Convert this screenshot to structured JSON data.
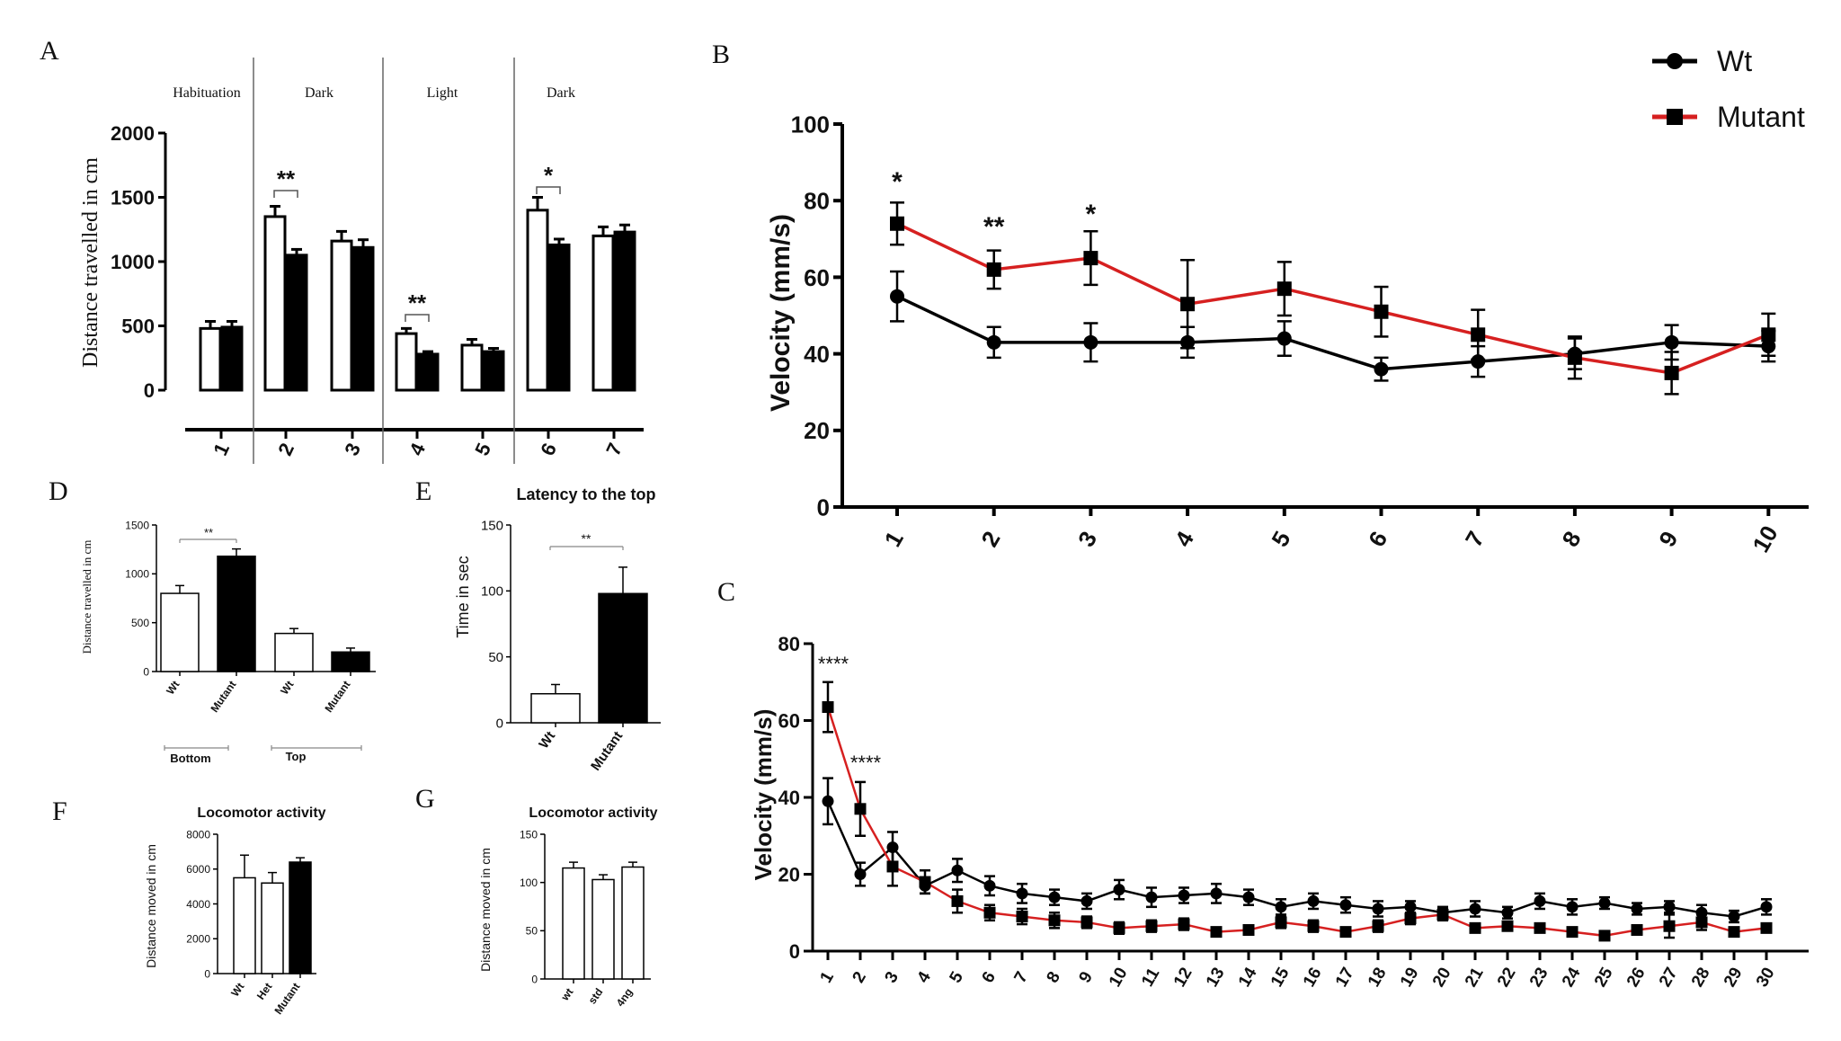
{
  "panel_letters": {
    "A": "A",
    "B": "B",
    "C": "C",
    "D": "D",
    "E": "E",
    "F": "F",
    "G": "G"
  },
  "chart_data": [
    {
      "id": "A",
      "type": "bar",
      "ylabel": "Distance travelled in cm",
      "ylim": [
        0,
        2000
      ],
      "yticks": [
        "0",
        "500",
        "1000",
        "1500",
        "2000"
      ],
      "categories": [
        "1",
        "2",
        "3",
        "4",
        "5",
        "6",
        "7"
      ],
      "sections": [
        "Habituation",
        "Dark",
        "Light",
        "Dark"
      ],
      "series": [
        {
          "fill": "#ffffff",
          "values": [
            480,
            1350,
            1160,
            440,
            350,
            1400,
            1200
          ],
          "errors": [
            55,
            80,
            75,
            40,
            45,
            100,
            70
          ]
        },
        {
          "fill": "#000000",
          "values": [
            490,
            1050,
            1110,
            280,
            300,
            1130,
            1230
          ],
          "errors": [
            45,
            45,
            60,
            20,
            25,
            45,
            55
          ]
        }
      ],
      "significance": [
        {
          "category": "2",
          "label": "**"
        },
        {
          "category": "4",
          "label": "**"
        },
        {
          "category": "6",
          "label": "*"
        }
      ]
    },
    {
      "id": "B",
      "type": "line",
      "ylabel": "Velocity (mm/s)",
      "ylim": [
        0,
        100
      ],
      "yticks": [
        "0",
        "20",
        "40",
        "60",
        "80",
        "100"
      ],
      "x": [
        "1",
        "2",
        "3",
        "4",
        "5",
        "6",
        "7",
        "8",
        "9",
        "10"
      ],
      "series": [
        {
          "name": "Wt",
          "color": "#000000",
          "marker": "circle",
          "values": [
            55,
            43,
            43,
            43,
            44,
            36,
            38,
            40,
            43,
            42
          ],
          "errors": [
            6.5,
            4,
            5,
            4,
            4.5,
            3,
            4,
            4,
            4.5,
            4
          ]
        },
        {
          "name": "Mutant",
          "color": "#d62020",
          "marker": "square",
          "values": [
            74,
            62,
            65,
            53,
            57,
            51,
            45,
            39,
            35,
            45
          ],
          "errors": [
            5.5,
            5,
            7,
            11.5,
            7,
            6.5,
            6.5,
            5.5,
            5.5,
            5.5
          ]
        }
      ],
      "significance": [
        {
          "x": "1",
          "label": "*"
        },
        {
          "x": "2",
          "label": "**"
        },
        {
          "x": "3",
          "label": "*"
        }
      ],
      "legend_position": "top-right"
    },
    {
      "id": "C",
      "type": "line",
      "ylabel": "Velocity (mm/s)",
      "ylim": [
        0,
        80
      ],
      "yticks": [
        "0",
        "20",
        "40",
        "60",
        "80"
      ],
      "x": [
        "1",
        "2",
        "3",
        "4",
        "5",
        "6",
        "7",
        "8",
        "9",
        "10",
        "11",
        "12",
        "13",
        "14",
        "15",
        "16",
        "17",
        "18",
        "19",
        "20",
        "21",
        "22",
        "23",
        "24",
        "25",
        "26",
        "27",
        "28",
        "29",
        "30"
      ],
      "series": [
        {
          "name": "Wt",
          "color": "#000000",
          "marker": "circle",
          "values": [
            39,
            20,
            27,
            17,
            21,
            17,
            15,
            14,
            13,
            16,
            14,
            14.5,
            15,
            14,
            11.5,
            13,
            12,
            11,
            11.5,
            10,
            11,
            10,
            13,
            11.5,
            12.5,
            11,
            11.5,
            10,
            9,
            11.5
          ],
          "errors": [
            6,
            3,
            4,
            2,
            3,
            2.5,
            2.5,
            2,
            2,
            2.5,
            2.5,
            2,
            2.5,
            2,
            2,
            2,
            2,
            2,
            1.5,
            1.5,
            2,
            1.5,
            2,
            2,
            1.5,
            1.5,
            1.5,
            2,
            1.5,
            2
          ]
        },
        {
          "name": "Mutant",
          "color": "#d62020",
          "marker": "square",
          "values": [
            63.5,
            37,
            22,
            18,
            13,
            10,
            9,
            8,
            7.5,
            6,
            6.5,
            7,
            5,
            5.5,
            7.5,
            6.5,
            5,
            6.5,
            8.5,
            9.5,
            6,
            6.5,
            6,
            5,
            4,
            5.5,
            6.5,
            7.5,
            5,
            6
          ]
        },
        {
          "errors": [
            6.5,
            7,
            5,
            3,
            3,
            2,
            2,
            2,
            1.5,
            1.5,
            1.5,
            1.5,
            1,
            1,
            1.5,
            1.5,
            1,
            1.5,
            1.5,
            1.5,
            1,
            1,
            1,
            1,
            1,
            1,
            3,
            2,
            1,
            1
          ]
        }
      ],
      "significance": [
        {
          "x": "1",
          "label": "****"
        },
        {
          "x": "2",
          "label": "****"
        }
      ]
    },
    {
      "id": "D",
      "type": "bar",
      "ylabel": "Distance travelled in cm",
      "ylim": [
        0,
        1500
      ],
      "yticks": [
        "0",
        "500",
        "1000",
        "1500"
      ],
      "categories": [
        "Wt",
        "Mutant",
        "Wt",
        "Mutant"
      ],
      "values": [
        800,
        1180,
        390,
        200
      ],
      "errors": [
        80,
        75,
        50,
        40
      ],
      "fills": [
        "#ffffff",
        "#000000",
        "#ffffff",
        "#000000"
      ],
      "groups": [
        "Bottom",
        "Top"
      ],
      "significance": [
        {
          "label": "**"
        }
      ]
    },
    {
      "id": "E",
      "type": "bar",
      "title": "Latency to the top",
      "ylabel": "Time in sec",
      "ylim": [
        0,
        150
      ],
      "yticks": [
        "0",
        "50",
        "100",
        "150"
      ],
      "categories": [
        "Wt",
        "Mutant"
      ],
      "values": [
        22,
        98
      ],
      "errors": [
        7,
        20
      ],
      "fills": [
        "#ffffff",
        "#000000"
      ],
      "significance": [
        {
          "label": "**"
        }
      ]
    },
    {
      "id": "F",
      "type": "bar",
      "title": "Locomotor activity",
      "ylabel": "Distance moved in cm",
      "ylim": [
        0,
        8000
      ],
      "yticks": [
        "0",
        "2000",
        "4000",
        "6000",
        "8000"
      ],
      "categories": [
        "Wt",
        "Het",
        "Mutant"
      ],
      "values": [
        5500,
        5200,
        6400
      ],
      "errors": [
        1300,
        600,
        250
      ],
      "fills": [
        "#ffffff",
        "#ffffff",
        "#000000"
      ]
    },
    {
      "id": "G",
      "type": "bar",
      "title": "Locomotor activity",
      "ylabel": "Distance moved in cm",
      "ylim": [
        0,
        150
      ],
      "yticks": [
        "0",
        "50",
        "100",
        "150"
      ],
      "categories": [
        "wt",
        "std",
        "4ng"
      ],
      "values": [
        115,
        103,
        116
      ],
      "errors": [
        6,
        5,
        5
      ],
      "fills": [
        "#ffffff",
        "#ffffff",
        "#ffffff"
      ]
    }
  ]
}
